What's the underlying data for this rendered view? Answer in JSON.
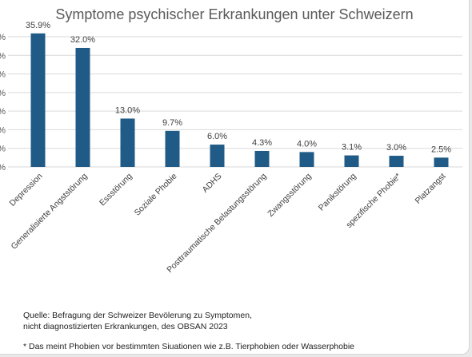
{
  "chart_data": {
    "type": "bar",
    "title": "Symptome psychischer Erkrankungen unter Schweizern",
    "categories": [
      "Depression",
      "Generalisierte Angststörung",
      "Essstörung",
      "Soziale Phobie",
      "ADHS",
      "Posttraumatische Belastungsstörung",
      "Zwangsstörung",
      "Panikstörung",
      "spezifische Phobie*",
      "Platzangst"
    ],
    "values": [
      35.9,
      32.0,
      13.0,
      9.7,
      6.0,
      4.3,
      4.0,
      3.1,
      3.0,
      2.5
    ],
    "value_labels": [
      "35.9%",
      "32.0%",
      "13.0%",
      "9.7%",
      "6.0%",
      "4.3%",
      "4.0%",
      "3.1%",
      "3.0%",
      "2.5%"
    ],
    "ylim": [
      0,
      35
    ],
    "yticks": [
      "%",
      "%",
      "%",
      "%",
      "%",
      "%",
      "%",
      "%"
    ],
    "xlabel": "",
    "ylabel": "",
    "grid": true,
    "bar_color": "#1f5b86",
    "grid_color": "#d9d9d9"
  },
  "footer": {
    "source_line1": "Quelle: Befragung der Schweizer Bevölerung zu Symptomen,",
    "source_line2": "nicht diagnostizierten Erkrankungen, des OBSAN 2023",
    "note": "* Das meint Phobien vor bestimmten Siuationen wie z.B. Tierphobien oder Wasserphobie"
  }
}
